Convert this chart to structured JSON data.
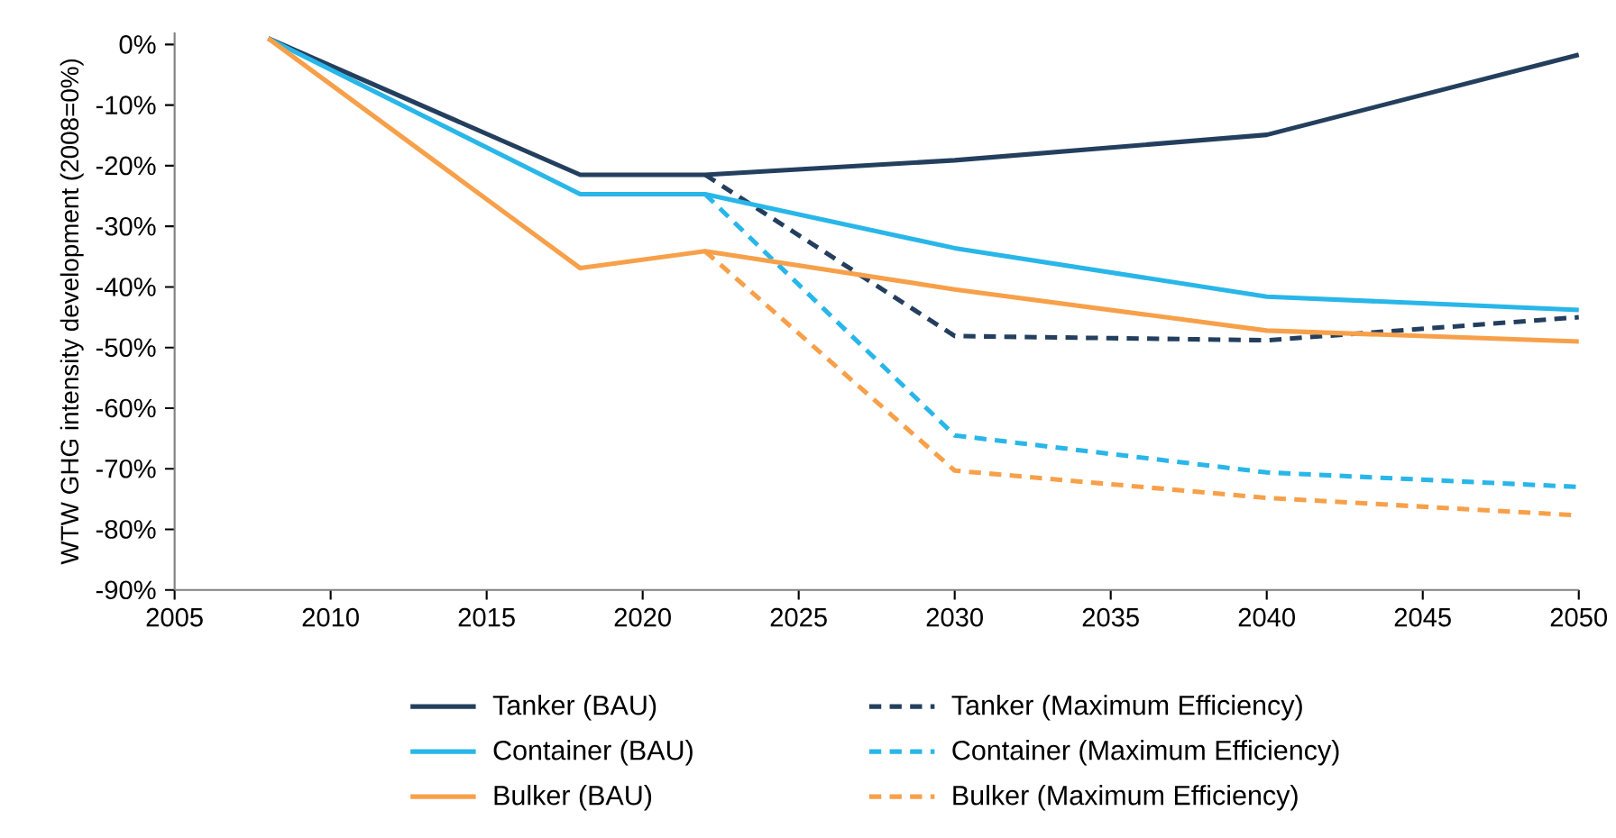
{
  "chart_data": {
    "type": "line",
    "ylabel": "WTW GHG intensity development (2008=0%)",
    "xlim": [
      2005,
      2050
    ],
    "xticks": [
      2005,
      2010,
      2015,
      2020,
      2025,
      2030,
      2035,
      2040,
      2045,
      2050
    ],
    "ylim": [
      -90,
      2
    ],
    "yticks": [
      {
        "value": 0,
        "label": "0%"
      },
      {
        "value": -10,
        "label": "-10%"
      },
      {
        "value": -20,
        "label": "-20%"
      },
      {
        "value": -30,
        "label": "-30%"
      },
      {
        "value": -40,
        "label": "-40%"
      },
      {
        "value": -50,
        "label": "-50%"
      },
      {
        "value": -60,
        "label": "-60%"
      },
      {
        "value": -70,
        "label": "-70%"
      },
      {
        "value": -80,
        "label": "-80%"
      },
      {
        "value": -90,
        "label": "-90%"
      }
    ],
    "grid": false,
    "legend": "bottom",
    "marker": "none",
    "series": [
      {
        "name": "Tanker (BAU)",
        "color": "#243f5e",
        "line_style": "solid",
        "x": [
          2008,
          2018,
          2022,
          2030,
          2040,
          2050
        ],
        "values": [
          1,
          -21.5,
          -21.5,
          -19.1,
          -14.9,
          -1.7
        ]
      },
      {
        "name": "Tanker (Maximum Efficiency)",
        "color": "#243f5e",
        "line_style": "dashed",
        "x": [
          2022,
          2030,
          2040,
          2050
        ],
        "values": [
          -21.5,
          -48.1,
          -48.8,
          -45.0
        ]
      },
      {
        "name": "Container (BAU)",
        "color": "#29b6e8",
        "line_style": "solid",
        "x": [
          2008,
          2018,
          2022,
          2030,
          2040,
          2050
        ],
        "values": [
          1,
          -24.7,
          -24.7,
          -33.6,
          -41.6,
          -43.8
        ]
      },
      {
        "name": "Container (Maximum Efficiency)",
        "color": "#29b6e8",
        "line_style": "dashed",
        "x": [
          2022,
          2030,
          2040,
          2050
        ],
        "values": [
          -24.7,
          -64.5,
          -70.6,
          -73.0
        ]
      },
      {
        "name": "Bulker (BAU)",
        "color": "#f7a04a",
        "line_style": "solid",
        "x": [
          2008,
          2018,
          2022,
          2030,
          2040,
          2050
        ],
        "values": [
          1,
          -36.9,
          -34.1,
          -40.4,
          -47.2,
          -49.0
        ]
      },
      {
        "name": "Bulker (Maximum Efficiency)",
        "color": "#f7a04a",
        "line_style": "dashed",
        "x": [
          2022,
          2030,
          2040,
          2050
        ],
        "values": [
          -34.1,
          -70.3,
          -74.8,
          -77.7
        ]
      }
    ]
  }
}
